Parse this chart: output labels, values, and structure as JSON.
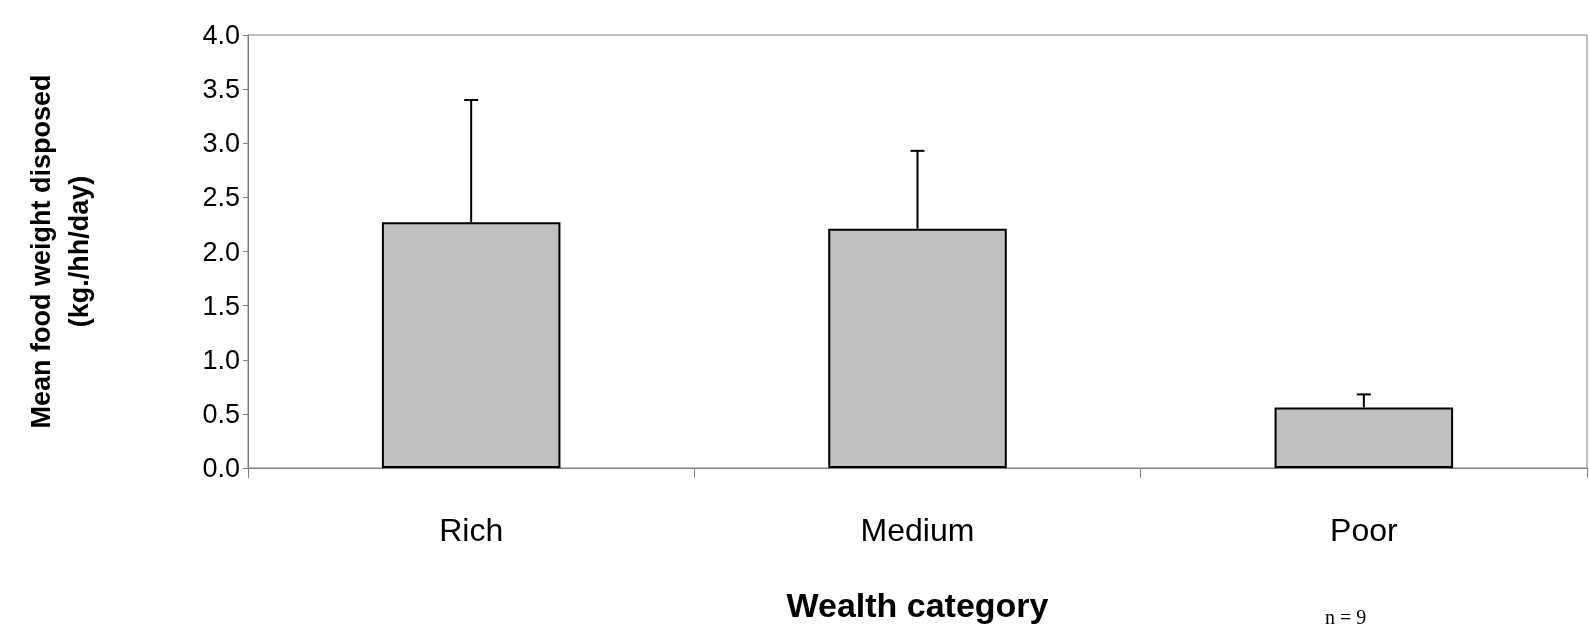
{
  "chart_data": {
    "type": "bar",
    "xlabel": "Wealth category",
    "ylabel": "Mean food weight disposed\n(kg./hh/day)",
    "categories": [
      "Rich",
      "Medium",
      "Poor"
    ],
    "values": [
      2.27,
      2.21,
      0.56
    ],
    "color": "#c0c0c0",
    "errors": [
      [
        2.27,
        3.4
      ],
      [
        2.21,
        2.93
      ],
      [
        0.56,
        0.68
      ]
    ],
    "ylim": [
      0,
      4
    ],
    "yticks": [
      {
        "value": 0,
        "label": "0.0"
      },
      {
        "value": 0.5,
        "label": "0.5"
      },
      {
        "value": 1,
        "label": "1.0"
      },
      {
        "value": 1.5,
        "label": "1.5"
      },
      {
        "value": 2,
        "label": "2.0"
      },
      {
        "value": 2.5,
        "label": "2.5"
      },
      {
        "value": 3,
        "label": "3.0"
      },
      {
        "value": 3.5,
        "label": "3.5"
      },
      {
        "value": 4,
        "label": "4.0"
      }
    ],
    "annotations": [
      "n = 9"
    ]
  }
}
